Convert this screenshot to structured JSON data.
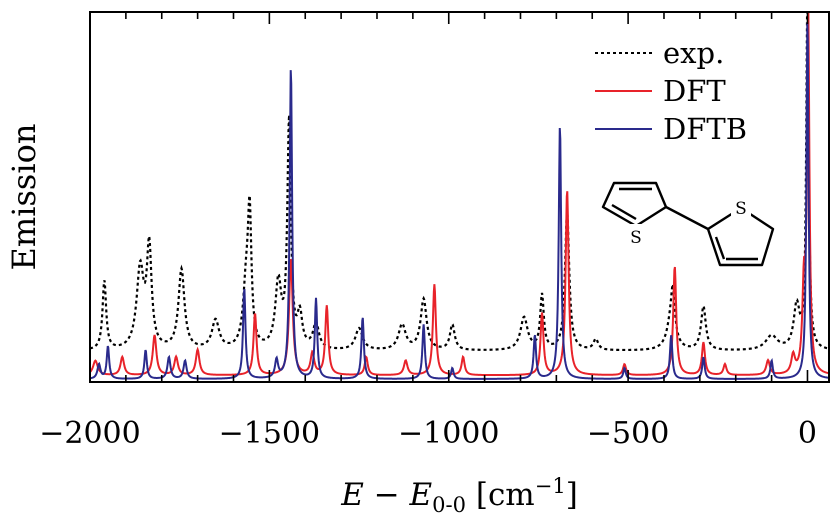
{
  "chart_data": {
    "type": "line",
    "title": "",
    "xlabel": "E − E0-0 [cm−1]",
    "xlabel_parts": {
      "e": "E",
      "minus": " − ",
      "e2": "E",
      "sub": "0-0",
      "unit_open": " [cm",
      "sup": "−1",
      "unit_close": "]"
    },
    "ylabel": "Emission",
    "xlim": [
      -2000,
      60
    ],
    "ylim": [
      0,
      1.0
    ],
    "grid": false,
    "legend_position": "top-right",
    "x_ticks": [
      -2000,
      -1500,
      -1000,
      -500,
      0
    ],
    "x_tick_labels": [
      "−2000",
      "−1500",
      "−1000",
      "−500",
      "0"
    ],
    "inset": {
      "type": "molecule-structure",
      "atom_labels": [
        "S",
        "S"
      ]
    },
    "series": [
      {
        "name": "exp.",
        "color": "#000000",
        "style": "dotted",
        "baseline": 0.085,
        "peaks": [
          [
            -1960,
            0.19,
            6
          ],
          [
            -1860,
            0.22,
            12
          ],
          [
            -1835,
            0.27,
            8
          ],
          [
            -1745,
            0.22,
            10
          ],
          [
            -1650,
            0.08,
            12
          ],
          [
            -1565,
            0.16,
            10
          ],
          [
            -1555,
            0.34,
            6
          ],
          [
            -1475,
            0.18,
            10
          ],
          [
            -1445,
            0.62,
            6
          ],
          [
            -1415,
            0.09,
            8
          ],
          [
            -1370,
            0.07,
            10
          ],
          [
            -1250,
            0.06,
            12
          ],
          [
            -1130,
            0.07,
            12
          ],
          [
            -1070,
            0.14,
            10
          ],
          [
            -990,
            0.07,
            8
          ],
          [
            -790,
            0.09,
            12
          ],
          [
            -740,
            0.15,
            6
          ],
          [
            -670,
            0.38,
            7
          ],
          [
            -590,
            0.03,
            8
          ],
          [
            -380,
            0.08,
            14
          ],
          [
            -375,
            0.11,
            6
          ],
          [
            -290,
            0.12,
            8
          ],
          [
            -100,
            0.04,
            20
          ],
          [
            -30,
            0.12,
            10
          ],
          [
            0,
            1.0,
            4
          ]
        ]
      },
      {
        "name": "DFT",
        "color": "#e8232a",
        "style": "solid",
        "baseline": 0.018,
        "peaks": [
          [
            -1985,
            0.04,
            8
          ],
          [
            -1910,
            0.05,
            6
          ],
          [
            -1820,
            0.11,
            6
          ],
          [
            -1760,
            0.05,
            6
          ],
          [
            -1700,
            0.07,
            6
          ],
          [
            -1540,
            0.17,
            5
          ],
          [
            -1440,
            0.32,
            6
          ],
          [
            -1380,
            0.06,
            6
          ],
          [
            -1340,
            0.19,
            5
          ],
          [
            -1230,
            0.05,
            5
          ],
          [
            -1120,
            0.04,
            6
          ],
          [
            -1040,
            0.25,
            5
          ],
          [
            -960,
            0.05,
            5
          ],
          [
            -740,
            0.17,
            5
          ],
          [
            -670,
            0.51,
            5
          ],
          [
            -510,
            0.03,
            5
          ],
          [
            -370,
            0.3,
            5
          ],
          [
            -290,
            0.09,
            5
          ],
          [
            -230,
            0.03,
            5
          ],
          [
            -110,
            0.04,
            6
          ],
          [
            -40,
            0.05,
            6
          ],
          [
            -10,
            0.22,
            5
          ],
          [
            2,
            0.98,
            4
          ]
        ]
      },
      {
        "name": "DFTB",
        "color": "#2a2a8c",
        "style": "solid",
        "baseline": 0.008,
        "peaks": [
          [
            -1975,
            0.04,
            5
          ],
          [
            -1950,
            0.09,
            4
          ],
          [
            -1845,
            0.08,
            4
          ],
          [
            -1780,
            0.06,
            5
          ],
          [
            -1735,
            0.05,
            5
          ],
          [
            -1570,
            0.25,
            4
          ],
          [
            -1480,
            0.05,
            5
          ],
          [
            -1440,
            0.86,
            4
          ],
          [
            -1370,
            0.22,
            4
          ],
          [
            -1240,
            0.17,
            4
          ],
          [
            -1070,
            0.15,
            4
          ],
          [
            -990,
            0.03,
            4
          ],
          [
            -760,
            0.12,
            4
          ],
          [
            -690,
            0.7,
            4
          ],
          [
            -510,
            0.03,
            4
          ],
          [
            -380,
            0.12,
            4
          ],
          [
            -290,
            0.06,
            4
          ],
          [
            -100,
            0.05,
            4
          ],
          [
            0,
            1.0,
            3.5
          ]
        ]
      }
    ]
  }
}
